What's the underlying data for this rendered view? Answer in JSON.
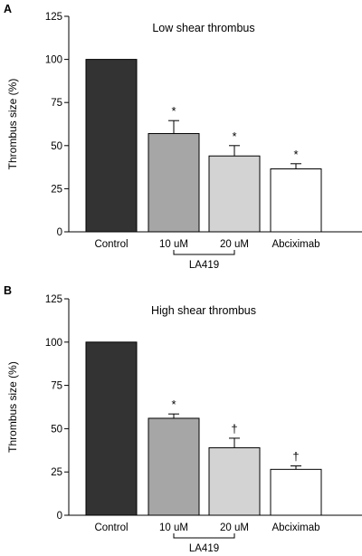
{
  "chart_data": [
    {
      "type": "bar",
      "panel_label": "A",
      "title": "Low shear thrombus",
      "ylabel": "Thrombus size (%)",
      "xlabel": "",
      "ylim": [
        0,
        125
      ],
      "yticks": [
        0,
        25,
        50,
        75,
        100,
        125
      ],
      "categories": [
        "Control",
        "10 uM",
        "20 uM",
        "Abciximab"
      ],
      "values": [
        100,
        57,
        44,
        36.5
      ],
      "errors": [
        0,
        7.5,
        6,
        3
      ],
      "significance": [
        "",
        "*",
        "*",
        "*"
      ],
      "bar_colors": [
        "#333333",
        "#a6a6a6",
        "#d3d3d3",
        "#ffffff"
      ],
      "group_label": "LA419",
      "group_categories": [
        1,
        2
      ],
      "grid": false,
      "legend": "none"
    },
    {
      "type": "bar",
      "panel_label": "B",
      "title": "High shear thrombus",
      "ylabel": "Thrombus size (%)",
      "xlabel": "",
      "ylim": [
        0,
        125
      ],
      "yticks": [
        0,
        25,
        50,
        75,
        100,
        125
      ],
      "categories": [
        "Control",
        "10 uM",
        "20 uM",
        "Abciximab"
      ],
      "values": [
        100,
        56,
        39,
        26.5
      ],
      "errors": [
        0,
        2.5,
        5.5,
        2
      ],
      "significance": [
        "",
        "*",
        "†",
        "†"
      ],
      "bar_colors": [
        "#333333",
        "#a6a6a6",
        "#d3d3d3",
        "#ffffff"
      ],
      "group_label": "LA419",
      "group_categories": [
        1,
        2
      ],
      "grid": false,
      "legend": "none"
    }
  ]
}
